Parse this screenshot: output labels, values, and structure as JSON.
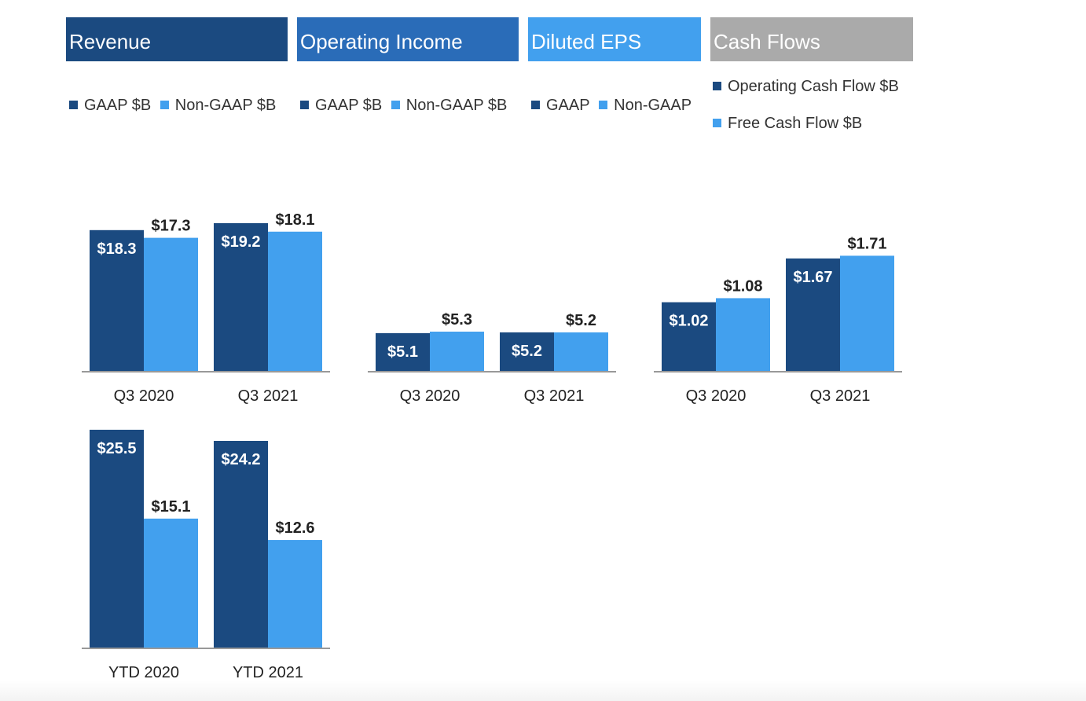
{
  "colors": {
    "gaap": "#1b4a80",
    "nongaap": "#42a0ee",
    "header_revenue": "#1b4a80",
    "header_opinc": "#2a6cb8",
    "header_eps": "#42a0ee",
    "header_cash": "#aaaaaa",
    "axis": "#999999"
  },
  "headers": {
    "revenue": "Revenue",
    "operating_income": "Operating Income",
    "diluted_eps": "Diluted EPS",
    "cash_flows": "Cash Flows"
  },
  "legends": {
    "revenue": [
      "GAAP $B",
      "Non-GAAP $B"
    ],
    "operating_income": [
      "GAAP $B",
      "Non-GAAP $B"
    ],
    "diluted_eps": [
      "GAAP",
      "Non-GAAP"
    ],
    "cash_flows": [
      "Operating Cash Flow $B",
      "Free Cash Flow $B"
    ]
  },
  "chart_data": [
    {
      "type": "bar",
      "categories": [
        "Q3 2020",
        "Q3 2021"
      ],
      "series": [
        {
          "name": "GAAP $B",
          "values": [
            18.3,
            19.2
          ],
          "labels": [
            "$18.3",
            "$19.2"
          ]
        },
        {
          "name": "Non-GAAP $B",
          "values": [
            17.3,
            18.1
          ],
          "labels": [
            "$17.3",
            "$18.1"
          ]
        }
      ],
      "ylim": [
        0,
        19.2
      ]
    },
    {
      "type": "bar",
      "categories": [
        "Q3 2020",
        "Q3 2021"
      ],
      "series": [
        {
          "name": "GAAP $B",
          "values": [
            5.1,
            5.2
          ],
          "labels": [
            "$5.1",
            "$5.2"
          ]
        },
        {
          "name": "Non-GAAP $B",
          "values": [
            5.3,
            5.2
          ],
          "labels": [
            "$5.3",
            "$5.2"
          ]
        }
      ],
      "ylim": [
        0,
        10.6
      ]
    },
    {
      "type": "bar",
      "categories": [
        "Q3 2020",
        "Q3 2021"
      ],
      "series": [
        {
          "name": "GAAP",
          "values": [
            1.02,
            1.67
          ],
          "labels": [
            "$1.02",
            "$1.67"
          ]
        },
        {
          "name": "Non-GAAP",
          "values": [
            1.08,
            1.71
          ],
          "labels": [
            "$1.08",
            "$1.71"
          ]
        }
      ],
      "ylim": [
        0,
        2.8
      ]
    },
    {
      "type": "bar",
      "categories": [
        "YTD 2020",
        "YTD 2021"
      ],
      "series": [
        {
          "name": "Operating Cash Flow $B",
          "values": [
            25.5,
            24.2
          ],
          "labels": [
            "$25.5",
            "$24.2"
          ]
        },
        {
          "name": "Free Cash Flow $B",
          "values": [
            15.1,
            12.6
          ],
          "labels": [
            "$15.1",
            "$12.6"
          ]
        }
      ],
      "ylim": [
        0,
        41.5
      ]
    }
  ]
}
